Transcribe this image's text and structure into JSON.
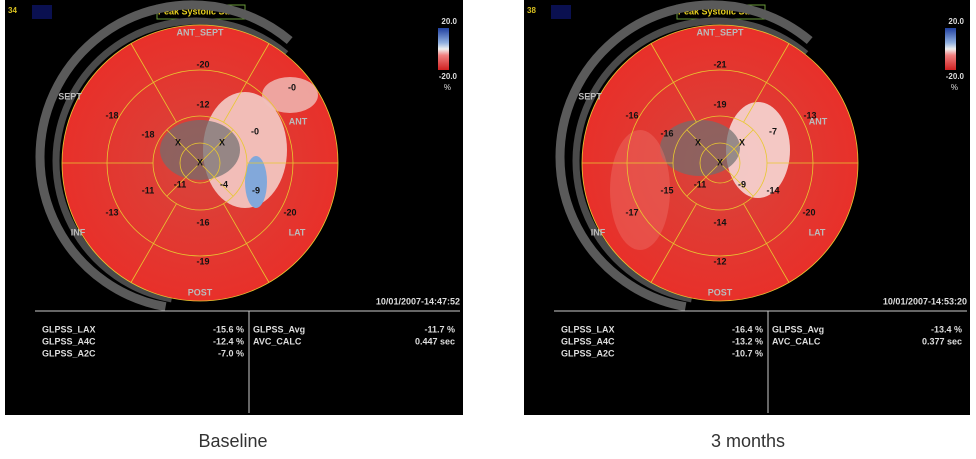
{
  "panels": [
    {
      "frame": "34",
      "title": "Peak Systolic Strain",
      "scale": {
        "max": "20.0",
        "min": "-20.0",
        "unit": "%"
      },
      "walls": [
        "ANT_SEPT",
        "ANT",
        "LAT",
        "POST",
        "INF",
        "SEPT"
      ],
      "segments": [
        "-20",
        "-0",
        "-20",
        "-19",
        "-13",
        "-18",
        "-12",
        "-0",
        "-9",
        "-16",
        "-11",
        "-18",
        "-4",
        "-11"
      ],
      "marks": [
        "X",
        "X",
        "X"
      ],
      "timestamp": "10/01/2007-14:47:52",
      "stats_left": [
        [
          "GLPSS_LAX",
          "-15.6 %"
        ],
        [
          "GLPSS_A4C",
          "-12.4 %"
        ],
        [
          "GLPSS_A2C",
          "-7.0 %"
        ]
      ],
      "stats_right": [
        [
          "GLPSS_Avg",
          "-11.7 %"
        ],
        [
          "AVC_CALC",
          "0.447 sec"
        ]
      ],
      "caption": "Baseline"
    },
    {
      "frame": "38",
      "title": "Peak Systolic Strain",
      "scale": {
        "max": "20.0",
        "min": "-20.0",
        "unit": "%"
      },
      "walls": [
        "ANT_SEPT",
        "ANT",
        "LAT",
        "POST",
        "INF",
        "SEPT"
      ],
      "segments": [
        "-21",
        "-13",
        "-20",
        "-12",
        "-17",
        "-16",
        "-19",
        "-7",
        "-14",
        "-14",
        "-15",
        "-16",
        "-9",
        "-11"
      ],
      "marks": [
        "X",
        "X",
        "X"
      ],
      "timestamp": "10/01/2007-14:53:20",
      "stats_left": [
        [
          "GLPSS_LAX",
          "-16.4 %"
        ],
        [
          "GLPSS_A4C",
          "-13.2 %"
        ],
        [
          "GLPSS_A2C",
          "-10.7 %"
        ]
      ],
      "stats_right": [
        [
          "GLPSS_Avg",
          "-13.4 %"
        ],
        [
          "AVC_CALC",
          "0.377 sec"
        ]
      ],
      "caption": "3 months"
    }
  ]
}
